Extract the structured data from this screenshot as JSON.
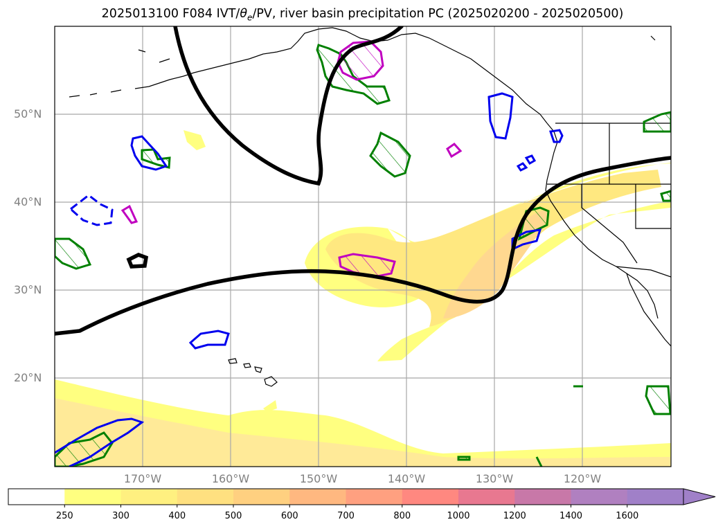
{
  "title": {
    "main": "2025013100 F084 IVT/",
    "theta_symbol": "θ",
    "theta_sub": "e",
    "rest": "/PV, river basin precipitation PC (2025020200 - 2025020500)"
  },
  "map": {
    "projection": "plate-carree",
    "lon_range": [
      -180,
      -110
    ],
    "lat_range": [
      10,
      60
    ],
    "grid": true,
    "lat_ticks": [
      {
        "value": 50,
        "label": "50°N"
      },
      {
        "value": 40,
        "label": "40°N"
      },
      {
        "value": 30,
        "label": "30°N"
      },
      {
        "value": 20,
        "label": "20°N"
      }
    ],
    "lon_ticks": [
      {
        "value": -170,
        "label": "170°W"
      },
      {
        "value": -160,
        "label": "160°W"
      },
      {
        "value": -150,
        "label": "150°W"
      },
      {
        "value": -140,
        "label": "140°W"
      },
      {
        "value": -130,
        "label": "130°W"
      },
      {
        "value": -120,
        "label": "120°W"
      }
    ],
    "layers": [
      {
        "name": "IVT shading",
        "type": "filled-contour",
        "color_scale": "yellow-orange-red-purple"
      },
      {
        "name": "PV / theta-e contour",
        "type": "line",
        "color": "#000000"
      },
      {
        "name": "precipitation PC positive",
        "type": "hatched-contour",
        "color": "#008000"
      },
      {
        "name": "precipitation PC",
        "type": "contour",
        "color": "#0000ee"
      },
      {
        "name": "precipitation PC",
        "type": "contour",
        "color": "#c000c0"
      }
    ]
  },
  "colorbar": {
    "extend": "max",
    "levels": [
      "250",
      "300",
      "400",
      "500",
      "600",
      "700",
      "800",
      "1000",
      "1200",
      "1400",
      "1600"
    ],
    "colors": [
      "#ffffff",
      "#ffff80",
      "#fff080",
      "#ffe080",
      "#ffd080",
      "#ffb880",
      "#ffa080",
      "#ff8880",
      "#e87890",
      "#c878a8",
      "#b080c0",
      "#a080c8"
    ]
  }
}
